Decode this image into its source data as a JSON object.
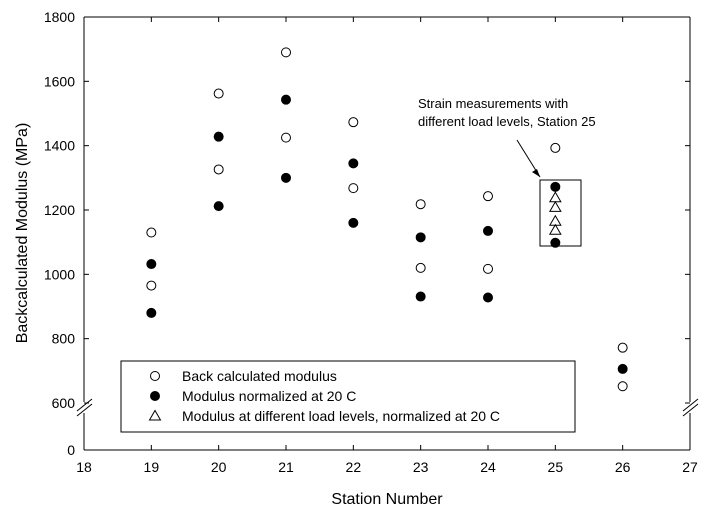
{
  "chart_data": {
    "type": "scatter",
    "title": "",
    "xlabel": "Station Number",
    "ylabel": "Backcalculated Modulus (MPa)",
    "xlim": [
      18,
      27
    ],
    "ylim": [
      0,
      1800
    ],
    "axis_break": true,
    "x_ticks": [
      "18",
      "19",
      "20",
      "21",
      "22",
      "23",
      "24",
      "25",
      "26",
      "27"
    ],
    "y_ticks": [
      "0",
      "600",
      "800",
      "1000",
      "1200",
      "1400",
      "1600",
      "1800"
    ],
    "grid": false,
    "legend_position": "bottom-left",
    "series": [
      {
        "name": "Back calculated modulus",
        "marker": "open-circle",
        "points": [
          [
            19,
            1130
          ],
          [
            19,
            965
          ],
          [
            20,
            1562
          ],
          [
            20,
            1326
          ],
          [
            21,
            1690
          ],
          [
            21,
            1425
          ],
          [
            22,
            1473
          ],
          [
            22,
            1268
          ],
          [
            23,
            1218
          ],
          [
            23,
            1020
          ],
          [
            24,
            1243
          ],
          [
            24,
            1017
          ],
          [
            25,
            1393
          ],
          [
            26,
            772
          ],
          [
            26,
            652
          ]
        ]
      },
      {
        "name": "Modulus normalized at 20 C",
        "marker": "filled-circle",
        "points": [
          [
            19,
            1032
          ],
          [
            19,
            880
          ],
          [
            20,
            1428
          ],
          [
            20,
            1212
          ],
          [
            21,
            1543
          ],
          [
            21,
            1300
          ],
          [
            22,
            1345
          ],
          [
            22,
            1160
          ],
          [
            23,
            1115
          ],
          [
            23,
            931
          ],
          [
            24,
            1135
          ],
          [
            24,
            928
          ],
          [
            25,
            1272
          ],
          [
            25,
            1098
          ],
          [
            26,
            706
          ]
        ]
      },
      {
        "name": "Modulus at different load levels, normalized at 20 C",
        "marker": "open-triangle",
        "points": [
          [
            25,
            1238
          ],
          [
            25,
            1208
          ],
          [
            25,
            1165
          ],
          [
            25,
            1137
          ]
        ]
      }
    ],
    "annotation": {
      "line1": "Strain measurements with",
      "line2": "different load levels, Station 25"
    }
  }
}
